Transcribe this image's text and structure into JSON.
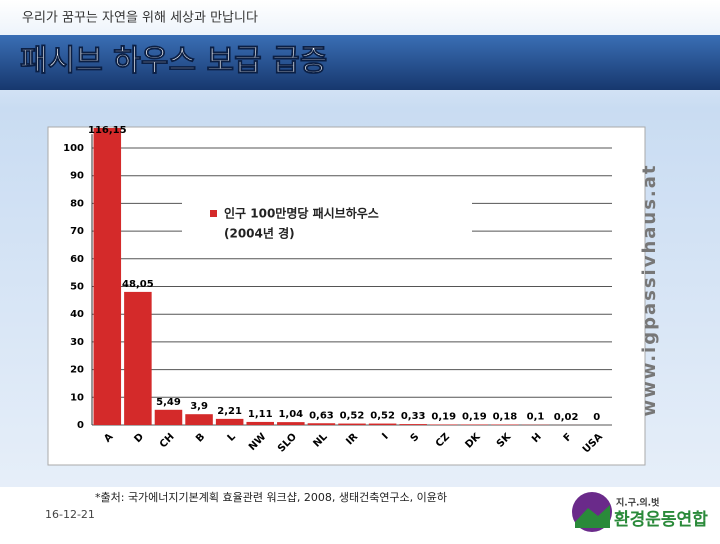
{
  "slide": {
    "tagline": "우리가 꿈꾸는 자연을 위해 세상과 만납니다",
    "title": "패시브 하우스 보급 급증",
    "source": "*출처: 국가에너지기본계획 효율관련 워크샵, 2008, 생태건축연구소, 이윤하",
    "date": "16-12-21",
    "logo_top": "지.구.의.벗",
    "logo_name": "환경운동연합"
  },
  "chart_data": {
    "type": "bar",
    "watermark": "www.igpassivhaus.at",
    "categories": [
      "A",
      "D",
      "CH",
      "B",
      "L",
      "NW",
      "SLO",
      "NL",
      "IR",
      "I",
      "S",
      "CZ",
      "DK",
      "SK",
      "H",
      "F",
      "USA"
    ],
    "series": [
      {
        "name": "인구 100만명당 패시브하우스",
        "color": "#d42a2a",
        "values": [
          116.15,
          48.05,
          5.49,
          3.9,
          2.21,
          1.11,
          1.04,
          0.63,
          0.52,
          0.52,
          0.33,
          0.19,
          0.19,
          0.18,
          0.1,
          0.02,
          0
        ],
        "value_labels": [
          "116,15",
          "48,05",
          "5,49",
          "3,9",
          "2,21",
          "1,11",
          "1,04",
          "0,63",
          "0,52",
          "0,52",
          "0,33",
          "0,19",
          "0,19",
          "0,18",
          "0,1",
          "0,02",
          "0"
        ]
      }
    ],
    "legend_note": "(2004년 경)",
    "ylim": [
      0,
      105
    ],
    "yticks": [
      0,
      10,
      20,
      30,
      40,
      50,
      60,
      70,
      80,
      90,
      100
    ],
    "grid": true
  }
}
